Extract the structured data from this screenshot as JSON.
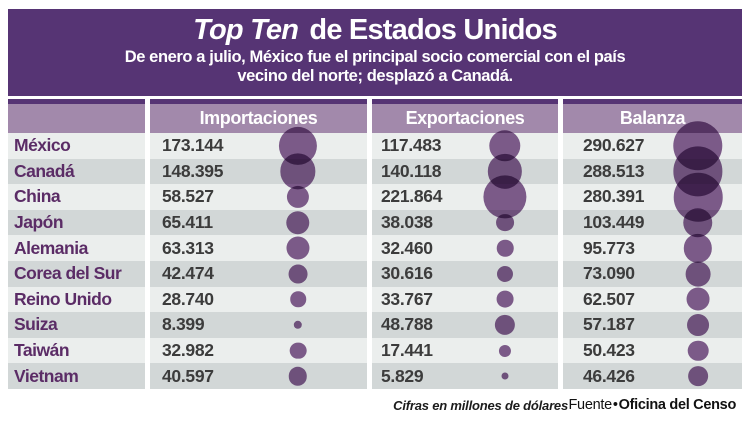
{
  "header": {
    "title_italic": "Top Ten",
    "title_rest": " de Estados Unidos",
    "subtitle_line1": "De enero a julio, México fue el principal socio comercial con el país",
    "subtitle_line2": "vecino del norte; desplazó a Canadá."
  },
  "footer": {
    "note": "Cifras en millones de dólares",
    "source_label": "Fuente",
    "source_separator": "•",
    "source_name": "Oficina del Censo"
  },
  "colors": {
    "band_purple": "#563474",
    "header_mauve": "#A289AB",
    "row_light": "#EBEEED",
    "row_dark": "#D2D7D7",
    "country_text": "#5B2C66",
    "value_text": "#3C3C3C",
    "bubble_purple": "#856092"
  },
  "chart_data": {
    "type": "table",
    "title": "Top Ten de Estados Unidos",
    "units": "millones de dólares",
    "bubble_note": "bubble diameter proportional to sqrt(value)",
    "row_header": "",
    "categories": [
      "México",
      "Canadá",
      "China",
      "Japón",
      "Alemania",
      "Corea del Sur",
      "Reino Unido",
      "Suiza",
      "Taiwán",
      "Vietnam"
    ],
    "series": [
      {
        "name": "Importaciones",
        "values": [
          173.144,
          148.395,
          58.527,
          65.411,
          63.313,
          42.474,
          28.74,
          8.399,
          32.982,
          40.597
        ]
      },
      {
        "name": "Exportaciones",
        "values": [
          117.483,
          140.118,
          221.864,
          38.038,
          32.46,
          30.616,
          33.767,
          48.788,
          17.441,
          5.829
        ]
      },
      {
        "name": "Balanza",
        "values": [
          290.627,
          288.513,
          280.391,
          103.449,
          95.773,
          73.09,
          62.507,
          57.187,
          50.423,
          46.426
        ]
      }
    ]
  }
}
